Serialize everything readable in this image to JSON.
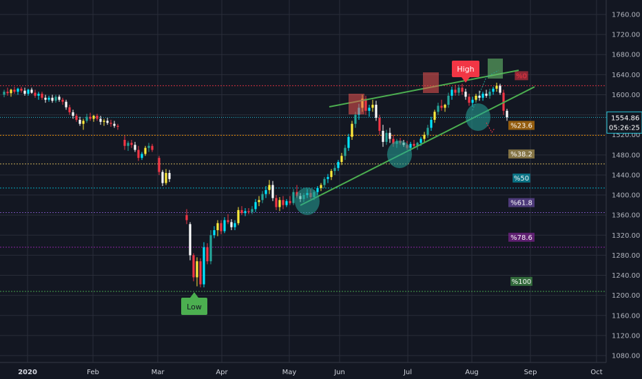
{
  "chart_data": {
    "type": "candlestick",
    "y_axis": {
      "ticks": [
        "1760.00",
        "1720.00",
        "1680.00",
        "1640.00",
        "1600.00",
        "1560.00",
        "1520.00",
        "1480.00",
        "1440.00",
        "1400.00",
        "1360.00",
        "1320.00",
        "1280.00",
        "1240.00",
        "1200.00",
        "1160.00",
        "1120.00",
        "1080.00"
      ],
      "range": [
        1075,
        1785
      ]
    },
    "x_axis": {
      "ticks": [
        "2020",
        "Feb",
        "Mar",
        "Apr",
        "May",
        "Jun",
        "Jul",
        "Aug",
        "Sep",
        "Oct"
      ]
    },
    "price_label": "1554.86",
    "countdown_label": "05:26:25",
    "fib_levels": [
      {
        "label": "0",
        "price": 1618,
        "color": "#f23645"
      },
      {
        "label": "23.6",
        "price": 1519,
        "color": "#ff9800"
      },
      {
        "label": "38.2",
        "price": 1462,
        "color": "#e0c060"
      },
      {
        "label": "50",
        "price": 1414,
        "color": "#00bcd4"
      },
      {
        "label": "61.8",
        "price": 1365,
        "color": "#7e57c2"
      },
      {
        "label": "78.6",
        "price": 1296,
        "color": "#9c27b0"
      },
      {
        "label": "100",
        "price": 1208,
        "color": "#4caf50"
      }
    ],
    "current_price": 1554.86,
    "annotations": {
      "high": "High",
      "low": "Low"
    },
    "candles": [
      [
        1,
        1600,
        1610,
        1595,
        1606
      ],
      [
        2,
        1606,
        1614,
        1598,
        1603
      ],
      [
        3,
        1603,
        1612,
        1596,
        1610
      ],
      [
        4,
        1610,
        1616,
        1602,
        1606
      ],
      [
        5,
        1606,
        1614,
        1600,
        1612
      ],
      [
        6,
        1612,
        1616,
        1604,
        1608
      ],
      [
        7,
        1608,
        1614,
        1598,
        1602
      ],
      [
        8,
        1602,
        1612,
        1598,
        1610
      ],
      [
        9,
        1610,
        1614,
        1602,
        1604
      ],
      [
        10,
        1604,
        1610,
        1594,
        1598
      ],
      [
        11,
        1598,
        1606,
        1590,
        1602
      ],
      [
        12,
        1602,
        1606,
        1590,
        1594
      ],
      [
        13,
        1594,
        1600,
        1584,
        1590
      ],
      [
        14,
        1590,
        1598,
        1586,
        1594
      ],
      [
        15,
        1594,
        1600,
        1584,
        1588
      ],
      [
        16,
        1588,
        1600,
        1584,
        1596
      ],
      [
        17,
        1596,
        1600,
        1586,
        1590
      ],
      [
        18,
        1590,
        1594,
        1580,
        1586
      ],
      [
        19,
        1586,
        1590,
        1570,
        1575
      ],
      [
        20,
        1575,
        1580,
        1560,
        1565
      ],
      [
        21,
        1565,
        1570,
        1552,
        1558
      ],
      [
        22,
        1558,
        1562,
        1546,
        1550
      ],
      [
        23,
        1550,
        1556,
        1538,
        1542
      ],
      [
        24,
        1542,
        1552,
        1530,
        1548
      ],
      [
        25,
        1548,
        1562,
        1544,
        1556
      ],
      [
        26,
        1556,
        1564,
        1548,
        1552
      ],
      [
        27,
        1552,
        1560,
        1546,
        1558
      ],
      [
        28,
        1558,
        1562,
        1548,
        1552
      ],
      [
        29,
        1552,
        1558,
        1540,
        1546
      ],
      [
        30,
        1546,
        1552,
        1538,
        1548
      ],
      [
        31,
        1548,
        1554,
        1540,
        1544
      ],
      [
        32,
        1544,
        1550,
        1536,
        1542
      ],
      [
        33,
        1542,
        1548,
        1534,
        1538
      ],
      [
        34,
        1538,
        1542,
        1530,
        1536
      ],
      [
        36,
        1510,
        1518,
        1490,
        1498
      ],
      [
        37,
        1498,
        1508,
        1488,
        1504
      ],
      [
        38,
        1504,
        1510,
        1494,
        1500
      ],
      [
        39,
        1500,
        1506,
        1486,
        1490
      ],
      [
        40,
        1490,
        1498,
        1468,
        1474
      ],
      [
        41,
        1474,
        1486,
        1470,
        1482
      ],
      [
        42,
        1482,
        1498,
        1478,
        1494
      ],
      [
        43,
        1494,
        1504,
        1486,
        1498
      ],
      [
        44,
        1498,
        1502,
        1486,
        1490
      ],
      [
        46,
        1474,
        1478,
        1440,
        1446
      ],
      [
        47,
        1446,
        1450,
        1418,
        1424
      ],
      [
        48,
        1424,
        1452,
        1420,
        1444
      ],
      [
        49,
        1444,
        1450,
        1426,
        1432
      ],
      [
        54,
        1360,
        1372,
        1342,
        1350
      ],
      [
        55,
        1342,
        1346,
        1270,
        1280
      ],
      [
        56,
        1280,
        1284,
        1228,
        1236
      ],
      [
        57,
        1236,
        1276,
        1218,
        1268
      ],
      [
        58,
        1268,
        1274,
        1216,
        1222
      ],
      [
        59,
        1222,
        1306,
        1216,
        1296
      ],
      [
        60,
        1296,
        1304,
        1262,
        1268
      ],
      [
        61,
        1268,
        1330,
        1262,
        1320
      ],
      [
        62,
        1320,
        1338,
        1314,
        1330
      ],
      [
        63,
        1330,
        1350,
        1318,
        1344
      ],
      [
        64,
        1344,
        1350,
        1322,
        1328
      ],
      [
        65,
        1328,
        1356,
        1324,
        1350
      ],
      [
        66,
        1350,
        1362,
        1342,
        1346
      ],
      [
        67,
        1346,
        1352,
        1330,
        1336
      ],
      [
        68,
        1336,
        1350,
        1330,
        1344
      ],
      [
        69,
        1344,
        1376,
        1340,
        1370
      ],
      [
        70,
        1370,
        1378,
        1360,
        1364
      ],
      [
        71,
        1364,
        1374,
        1358,
        1368
      ],
      [
        72,
        1368,
        1374,
        1362,
        1366
      ],
      [
        73,
        1366,
        1378,
        1362,
        1372
      ],
      [
        74,
        1372,
        1392,
        1366,
        1386
      ],
      [
        75,
        1386,
        1398,
        1378,
        1390
      ],
      [
        76,
        1390,
        1408,
        1384,
        1402
      ],
      [
        77,
        1402,
        1418,
        1394,
        1410
      ],
      [
        78,
        1410,
        1430,
        1402,
        1420
      ],
      [
        79,
        1420,
        1428,
        1388,
        1394
      ],
      [
        80,
        1394,
        1400,
        1370,
        1376
      ],
      [
        81,
        1376,
        1396,
        1368,
        1390
      ],
      [
        82,
        1390,
        1398,
        1372,
        1380
      ],
      [
        83,
        1380,
        1392,
        1376,
        1388
      ],
      [
        84,
        1388,
        1398,
        1380,
        1384
      ],
      [
        85,
        1384,
        1412,
        1380,
        1406
      ],
      [
        86,
        1406,
        1420,
        1394,
        1398
      ],
      [
        87,
        1398,
        1404,
        1386,
        1392
      ],
      [
        88,
        1392,
        1404,
        1386,
        1400
      ],
      [
        89,
        1400,
        1412,
        1394,
        1404
      ],
      [
        90,
        1404,
        1412,
        1392,
        1396
      ],
      [
        91,
        1396,
        1410,
        1390,
        1406
      ],
      [
        92,
        1406,
        1418,
        1400,
        1414
      ],
      [
        93,
        1414,
        1424,
        1408,
        1420
      ],
      [
        94,
        1420,
        1436,
        1414,
        1432
      ],
      [
        95,
        1432,
        1442,
        1424,
        1436
      ],
      [
        96,
        1436,
        1452,
        1430,
        1448
      ],
      [
        97,
        1448,
        1460,
        1440,
        1454
      ],
      [
        98,
        1454,
        1470,
        1448,
        1466
      ],
      [
        99,
        1466,
        1484,
        1460,
        1478
      ],
      [
        100,
        1478,
        1500,
        1470,
        1494
      ],
      [
        101,
        1494,
        1522,
        1488,
        1516
      ],
      [
        102,
        1516,
        1548,
        1510,
        1542
      ],
      [
        103,
        1542,
        1566,
        1534,
        1560
      ],
      [
        104,
        1560,
        1582,
        1550,
        1574
      ],
      [
        105,
        1574,
        1600,
        1566,
        1592
      ],
      [
        106,
        1592,
        1598,
        1560,
        1568
      ],
      [
        107,
        1568,
        1580,
        1556,
        1574
      ],
      [
        108,
        1574,
        1590,
        1566,
        1580
      ],
      [
        109,
        1580,
        1588,
        1548,
        1554
      ],
      [
        110,
        1554,
        1560,
        1520,
        1528
      ],
      [
        111,
        1528,
        1540,
        1496,
        1506
      ],
      [
        112,
        1506,
        1530,
        1500,
        1524
      ],
      [
        113,
        1524,
        1534,
        1504,
        1512
      ],
      [
        114,
        1512,
        1520,
        1496,
        1502
      ],
      [
        115,
        1502,
        1512,
        1494,
        1508
      ],
      [
        116,
        1508,
        1514,
        1500,
        1504
      ],
      [
        117,
        1504,
        1510,
        1496,
        1500
      ],
      [
        118,
        1500,
        1508,
        1490,
        1494
      ],
      [
        119,
        1494,
        1506,
        1488,
        1502
      ],
      [
        120,
        1502,
        1510,
        1494,
        1498
      ],
      [
        121,
        1498,
        1506,
        1490,
        1504
      ],
      [
        122,
        1504,
        1516,
        1498,
        1512
      ],
      [
        123,
        1512,
        1526,
        1506,
        1520
      ],
      [
        124,
        1520,
        1540,
        1514,
        1534
      ],
      [
        125,
        1534,
        1556,
        1528,
        1550
      ],
      [
        126,
        1550,
        1570,
        1544,
        1566
      ],
      [
        127,
        1566,
        1584,
        1560,
        1578
      ],
      [
        128,
        1578,
        1590,
        1568,
        1574
      ],
      [
        129,
        1574,
        1582,
        1566,
        1580
      ],
      [
        130,
        1580,
        1604,
        1574,
        1598
      ],
      [
        131,
        1598,
        1616,
        1590,
        1610
      ],
      [
        132,
        1610,
        1620,
        1598,
        1604
      ],
      [
        133,
        1604,
        1620,
        1598,
        1614
      ],
      [
        134,
        1614,
        1622,
        1600,
        1606
      ],
      [
        135,
        1606,
        1612,
        1590,
        1596
      ],
      [
        136,
        1596,
        1602,
        1578,
        1584
      ],
      [
        137,
        1584,
        1596,
        1576,
        1590
      ],
      [
        138,
        1590,
        1602,
        1584,
        1598
      ],
      [
        139,
        1598,
        1608,
        1588,
        1594
      ],
      [
        140,
        1594,
        1606,
        1588,
        1602
      ],
      [
        141,
        1602,
        1610,
        1594,
        1598
      ],
      [
        142,
        1598,
        1612,
        1592,
        1606
      ],
      [
        143,
        1606,
        1616,
        1600,
        1612
      ],
      [
        144,
        1612,
        1624,
        1606,
        1618
      ],
      [
        145,
        1618,
        1622,
        1600,
        1604
      ],
      [
        146,
        1604,
        1610,
        1560,
        1568
      ],
      [
        147,
        1568,
        1572,
        1548,
        1555
      ]
    ]
  }
}
